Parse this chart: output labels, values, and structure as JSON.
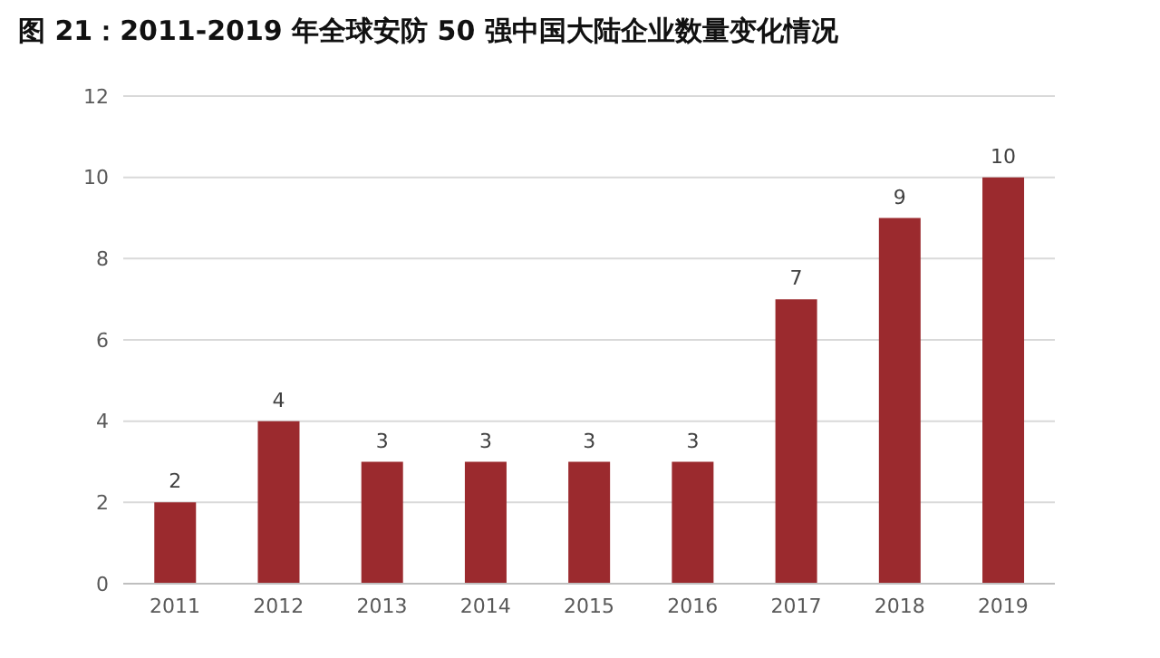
{
  "chart_data": {
    "type": "bar",
    "title": "图 21：2011-2019 年全球安防 50 强中国大陆企业数量变化情况",
    "categories": [
      "2011",
      "2012",
      "2013",
      "2014",
      "2015",
      "2016",
      "2017",
      "2018",
      "2019"
    ],
    "values": [
      2,
      4,
      3,
      3,
      3,
      3,
      7,
      9,
      10
    ],
    "color": "#9b2a2e",
    "ylim": [
      0,
      12
    ],
    "yticks": [
      0,
      2,
      4,
      6,
      8,
      10,
      12
    ],
    "grid": "y",
    "data_labels": true
  }
}
